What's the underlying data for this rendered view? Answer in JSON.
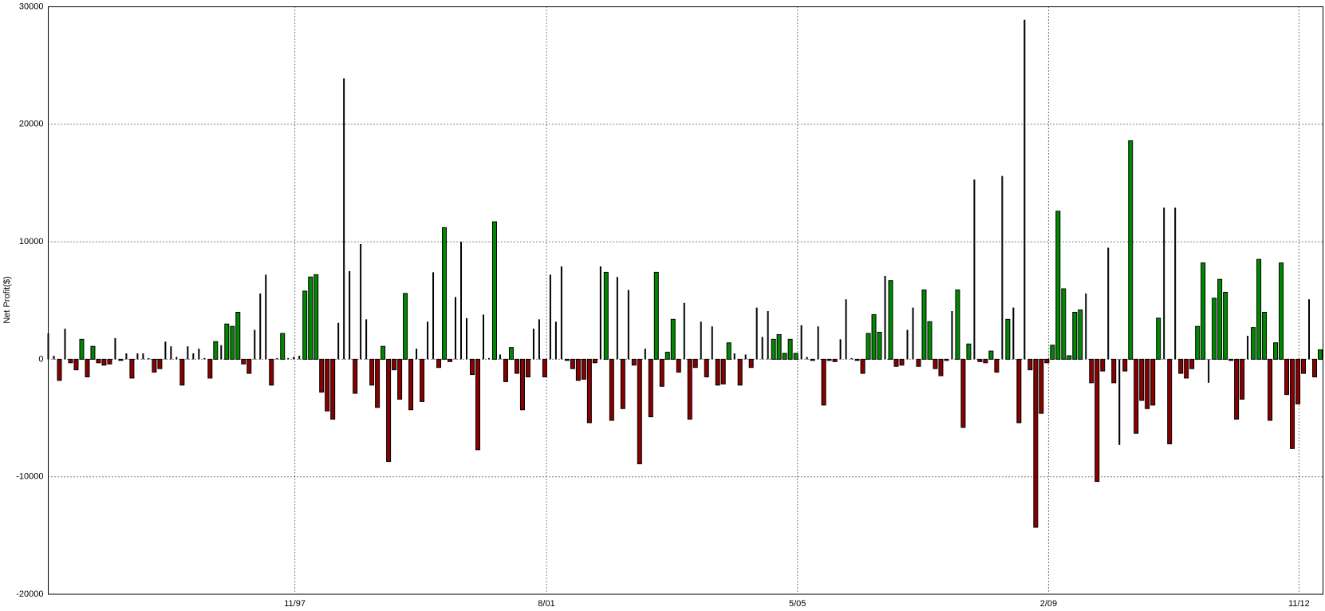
{
  "chart_data": {
    "type": "bar",
    "y_label": "Net Profit($)",
    "values": [
      2200,
      300,
      -1800,
      2600,
      -300,
      -900,
      1700,
      -1500,
      1100,
      -300,
      -500,
      -400,
      1800,
      -100,
      500,
      -1600,
      500,
      500,
      100,
      -1100,
      -800,
      1500,
      1100,
      200,
      -2200,
      1100,
      500,
      900,
      100,
      -1600,
      1500,
      1200,
      3000,
      2800,
      4000,
      -400,
      -1200,
      2500,
      5600,
      7200,
      -2200,
      100,
      2200,
      100,
      200,
      300,
      5800,
      7000,
      7200,
      -2800,
      -4400,
      -5100,
      3100,
      23900,
      7500,
      -2900,
      9800,
      3400,
      -2200,
      -4100,
      1100,
      -8700,
      -900,
      -3400,
      5600,
      -4300,
      900,
      -3600,
      3200,
      7400,
      -700,
      11200,
      -200,
      5300,
      10000,
      3500,
      -1300,
      -7700,
      3800,
      100,
      11700,
      400,
      -1900,
      1000,
      -1200,
      -4300,
      -1500,
      2600,
      3400,
      -1500,
      7200,
      3200,
      7900,
      -100,
      -800,
      -1800,
      -1700,
      -5400,
      -300,
      7900,
      7400,
      -5200,
      7000,
      -4200,
      5900,
      -500,
      -8900,
      900,
      -4900,
      7400,
      -2300,
      600,
      3400,
      -1100,
      4800,
      -5100,
      -700,
      3200,
      -1500,
      2800,
      -2200,
      -2100,
      1400,
      500,
      -2200,
      400,
      -700,
      4400,
      1900,
      4100,
      1700,
      2100,
      500,
      1700,
      500,
      2900,
      200,
      -100,
      2800,
      -3900,
      -100,
      -200,
      1700,
      5100,
      100,
      -100,
      -1200,
      2200,
      3800,
      2300,
      7100,
      6700,
      -600,
      -500,
      2500,
      4400,
      -600,
      5900,
      3200,
      -800,
      -1400,
      -100,
      4100,
      5900,
      -5800,
      1300,
      15300,
      -200,
      -300,
      700,
      -1100,
      15600,
      3400,
      4400,
      -5400,
      28900,
      -900,
      -14300,
      -4600,
      -300,
      1200,
      12600,
      6000,
      300,
      4000,
      4200,
      5600,
      -2000,
      -10400,
      -1000,
      9500,
      -2000,
      -7300,
      -1000,
      18600,
      -6300,
      -3500,
      -4200,
      -3900,
      3500,
      12900,
      -7200,
      12900,
      -1200,
      -1600,
      -800,
      2800,
      8200,
      -2000,
      5200,
      6800,
      5700,
      -100,
      -5100,
      -3400,
      2000,
      2700,
      8500,
      4000,
      -5200,
      1400,
      8200,
      -3000,
      -7600,
      -3800,
      -1200,
      5100,
      -1500,
      800
    ],
    "colors": [
      "#000",
      "#000",
      "#800",
      "#000",
      "#800",
      "#800",
      "#080",
      "#800",
      "#080",
      "#800",
      "#800",
      "#800",
      "#000",
      "#800",
      "#000",
      "#800",
      "#000",
      "#000",
      "#000",
      "#800",
      "#800",
      "#000",
      "#000",
      "#000",
      "#800",
      "#000",
      "#000",
      "#000",
      "#000",
      "#800",
      "#080",
      "#000",
      "#080",
      "#080",
      "#080",
      "#800",
      "#800",
      "#000",
      "#000",
      "#000",
      "#800",
      "#000",
      "#080",
      "#000",
      "#000",
      "#000",
      "#080",
      "#080",
      "#080",
      "#800",
      "#800",
      "#800",
      "#000",
      "#000",
      "#000",
      "#800",
      "#000",
      "#000",
      "#800",
      "#800",
      "#080",
      "#800",
      "#800",
      "#800",
      "#080",
      "#800",
      "#000",
      "#800",
      "#000",
      "#000",
      "#800",
      "#080",
      "#800",
      "#000",
      "#000",
      "#000",
      "#800",
      "#800",
      "#000",
      "#000",
      "#080",
      "#000",
      "#800",
      "#080",
      "#800",
      "#800",
      "#800",
      "#000",
      "#000",
      "#800",
      "#000",
      "#000",
      "#000",
      "#800",
      "#800",
      "#800",
      "#800",
      "#800",
      "#800",
      "#000",
      "#080",
      "#800",
      "#000",
      "#800",
      "#000",
      "#800",
      "#800",
      "#000",
      "#800",
      "#080",
      "#800",
      "#080",
      "#080",
      "#800",
      "#000",
      "#800",
      "#800",
      "#000",
      "#800",
      "#000",
      "#800",
      "#800",
      "#080",
      "#000",
      "#800",
      "#000",
      "#800",
      "#000",
      "#000",
      "#000",
      "#080",
      "#080",
      "#080",
      "#080",
      "#080",
      "#000",
      "#000",
      "#800",
      "#000",
      "#800",
      "#800",
      "#800",
      "#000",
      "#000",
      "#000",
      "#800",
      "#800",
      "#080",
      "#080",
      "#080",
      "#000",
      "#080",
      "#800",
      "#800",
      "#000",
      "#000",
      "#800",
      "#080",
      "#080",
      "#800",
      "#800",
      "#800",
      "#000",
      "#080",
      "#800",
      "#080",
      "#000",
      "#800",
      "#800",
      "#080",
      "#800",
      "#000",
      "#080",
      "#000",
      "#800",
      "#000",
      "#800",
      "#800",
      "#800",
      "#800",
      "#080",
      "#080",
      "#080",
      "#080",
      "#080",
      "#080",
      "#000",
      "#800",
      "#800",
      "#800",
      "#000",
      "#800",
      "#000",
      "#800",
      "#080",
      "#800",
      "#800",
      "#800",
      "#800",
      "#080",
      "#000",
      "#800",
      "#000",
      "#800",
      "#800",
      "#800",
      "#080",
      "#080",
      "#000",
      "#080",
      "#080",
      "#080",
      "#800",
      "#800",
      "#800",
      "#000",
      "#080",
      "#080",
      "#080",
      "#800",
      "#080",
      "#080",
      "#800",
      "#800",
      "#800",
      "#800",
      "#000",
      "#800",
      "#080"
    ],
    "xlim": [
      0,
      228.5
    ],
    "xticks": [
      {
        "value": 44.2,
        "label": "11/97"
      },
      {
        "value": 89.3,
        "label": "8/01"
      },
      {
        "value": 134.3,
        "label": "5/05"
      },
      {
        "value": 179.3,
        "label": "2/09"
      },
      {
        "value": 224.2,
        "label": "11/12"
      }
    ],
    "ylim": [
      -20000,
      30000
    ],
    "yticks": [
      -20000,
      -10000,
      0,
      10000,
      20000,
      30000
    ],
    "grid": true
  }
}
